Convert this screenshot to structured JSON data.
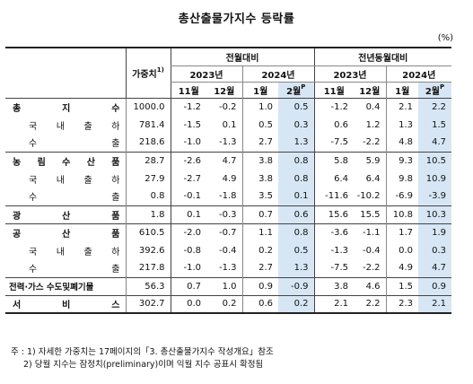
{
  "title": "총산출물가지수 등락률",
  "unit": "(%)",
  "header": {
    "weight_label": "가중치",
    "weight_note": "1)",
    "group_mom": "전월대비",
    "group_yoy": "전년동월대비",
    "year_2023": "2023년",
    "year_2024": "2024년",
    "months": [
      "11월",
      "12월",
      "1월",
      "2월"
    ],
    "provisional_mark": "P"
  },
  "rows": [
    {
      "label": "총 지 수",
      "level": 0,
      "weight": "1000.0",
      "mom": [
        "-1.2",
        "-0.2",
        "1.0",
        "0.5"
      ],
      "yoy": [
        "-1.2",
        "0.4",
        "2.1",
        "2.2"
      ]
    },
    {
      "label": "국 내 출 하",
      "level": 1,
      "weight": "781.4",
      "mom": [
        "-1.5",
        "0.1",
        "0.5",
        "0.3"
      ],
      "yoy": [
        "0.6",
        "1.2",
        "1.3",
        "1.5"
      ]
    },
    {
      "label": "수 출",
      "level": 1,
      "weight": "218.6",
      "mom": [
        "-1.0",
        "-1.3",
        "2.7",
        "1.3"
      ],
      "yoy": [
        "-7.5",
        "-2.2",
        "4.8",
        "4.7"
      ]
    },
    {
      "label": "농 림 수 산 품",
      "level": 0,
      "weight": "28.7",
      "mom": [
        "-2.6",
        "4.7",
        "3.8",
        "0.8"
      ],
      "yoy": [
        "5.8",
        "5.9",
        "9.3",
        "10.5"
      ]
    },
    {
      "label": "국 내 출 하",
      "level": 1,
      "weight": "27.9",
      "mom": [
        "-2.7",
        "4.9",
        "3.8",
        "0.8"
      ],
      "yoy": [
        "6.4",
        "6.4",
        "9.8",
        "10.9"
      ]
    },
    {
      "label": "수 출",
      "level": 1,
      "weight": "0.8",
      "mom": [
        "-0.1",
        "-1.8",
        "3.5",
        "0.1"
      ],
      "yoy": [
        "-11.6",
        "-10.2",
        "-6.9",
        "-3.9"
      ]
    },
    {
      "label": "광 산 품",
      "level": 0,
      "weight": "1.8",
      "mom": [
        "0.1",
        "-0.3",
        "0.7",
        "0.6"
      ],
      "yoy": [
        "15.6",
        "15.5",
        "10.8",
        "10.3"
      ]
    },
    {
      "label": "공 산 품",
      "level": 0,
      "weight": "610.5",
      "mom": [
        "-2.0",
        "-0.7",
        "1.1",
        "0.8"
      ],
      "yoy": [
        "-3.6",
        "-1.1",
        "1.7",
        "1.9"
      ]
    },
    {
      "label": "국 내 출 하",
      "level": 1,
      "weight": "392.6",
      "mom": [
        "-0.8",
        "-0.4",
        "0.2",
        "0.5"
      ],
      "yoy": [
        "-1.3",
        "-0.4",
        "0.0",
        "0.3"
      ]
    },
    {
      "label": "수 출",
      "level": 1,
      "weight": "217.8",
      "mom": [
        "-1.0",
        "-1.3",
        "2.7",
        "1.3"
      ],
      "yoy": [
        "-7.5",
        "-2.2",
        "4.9",
        "4.7"
      ]
    },
    {
      "label": "전력·가스 수도및폐기물",
      "level": 0,
      "weight": "56.3",
      "mom": [
        "0.7",
        "1.0",
        "0.9",
        "-0.9"
      ],
      "yoy": [
        "3.8",
        "4.6",
        "1.5",
        "0.9"
      ]
    },
    {
      "label": "서 비 스",
      "level": 0,
      "weight": "302.7",
      "mom": [
        "0.0",
        "0.2",
        "0.6",
        "0.2"
      ],
      "yoy": [
        "2.1",
        "2.2",
        "2.3",
        "2.1"
      ]
    }
  ],
  "footnotes": [
    "주 : 1) 자세한 가중치는 17페이지의「3. 총산출물가지수 작성개요」참조",
    "2) 당월 지수는 잠정치(preliminary)이며 익월 지수 공표시 확정됨"
  ]
}
